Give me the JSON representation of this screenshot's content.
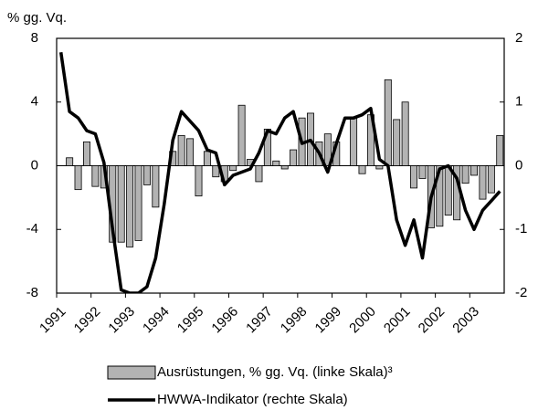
{
  "chart_data": {
    "type": "bar_line",
    "ylabel": "% gg. Vq.",
    "categories": [
      "1991",
      null,
      null,
      null,
      "1992",
      null,
      null,
      null,
      "1993",
      null,
      null,
      null,
      "1994",
      null,
      null,
      null,
      "1995",
      null,
      null,
      null,
      "1996",
      null,
      null,
      null,
      "1997",
      null,
      null,
      null,
      "1998",
      null,
      null,
      null,
      "1999",
      null,
      null,
      null,
      "2000",
      null,
      null,
      null,
      "2001",
      null,
      null,
      null,
      "2002",
      null,
      null,
      null,
      "2003",
      null,
      null,
      null
    ],
    "series": [
      {
        "name": "Ausrüstungen, % gg. Vq. (linke Skala)³",
        "color": "#b3b3b3",
        "type": "bar",
        "values": [
          null,
          0.5,
          -1.5,
          1.5,
          -1.3,
          -1.4,
          -4.8,
          -4.8,
          -5.1,
          -4.7,
          -1.2,
          -2.6,
          0,
          0.9,
          1.9,
          1.7,
          -1.9,
          0.9,
          -0.7,
          -1.0,
          -0.3,
          3.8,
          0.4,
          -1.0,
          2.3,
          0.3,
          -0.2,
          1.0,
          3.0,
          3.3,
          1.5,
          2.0,
          1.5,
          0,
          3.0,
          -0.5,
          3.2,
          -0.2,
          5.4,
          2.9,
          4.0,
          -1.4,
          -0.8,
          -3.9,
          -3.8,
          -3.1,
          -3.4,
          -1.1,
          -0.6,
          -2.1,
          -1.7,
          1.9
        ]
      },
      {
        "name": "HWWA-Indikator (rechte Skala)",
        "color": "#000000",
        "type": "line",
        "axis": "y2",
        "values": [
          1.78,
          0.85,
          0.75,
          0.55,
          0.5,
          0.05,
          -1.0,
          -1.95,
          -2.0,
          -2.0,
          -1.9,
          -1.45,
          -0.6,
          0.4,
          0.85,
          0.7,
          0.55,
          0.25,
          0.2,
          -0.3,
          -0.15,
          -0.1,
          -0.05,
          0.2,
          0.55,
          0.5,
          0.75,
          0.85,
          0.35,
          0.4,
          0.2,
          -0.1,
          0.35,
          0.75,
          0.75,
          0.8,
          0.9,
          0.1,
          0,
          -0.85,
          -1.25,
          -0.85,
          -1.45,
          -0.5,
          -0.05,
          0,
          -0.2,
          -0.7,
          -1.0,
          -0.7,
          -0.55,
          -0.4
        ]
      }
    ],
    "ylim": [
      -8,
      8
    ],
    "yticks": [
      -8,
      -4,
      0,
      4,
      8
    ],
    "y2lim": [
      -2,
      2
    ],
    "y2ticks": [
      -2,
      -1,
      0,
      1,
      2
    ],
    "legend": "bottom"
  }
}
